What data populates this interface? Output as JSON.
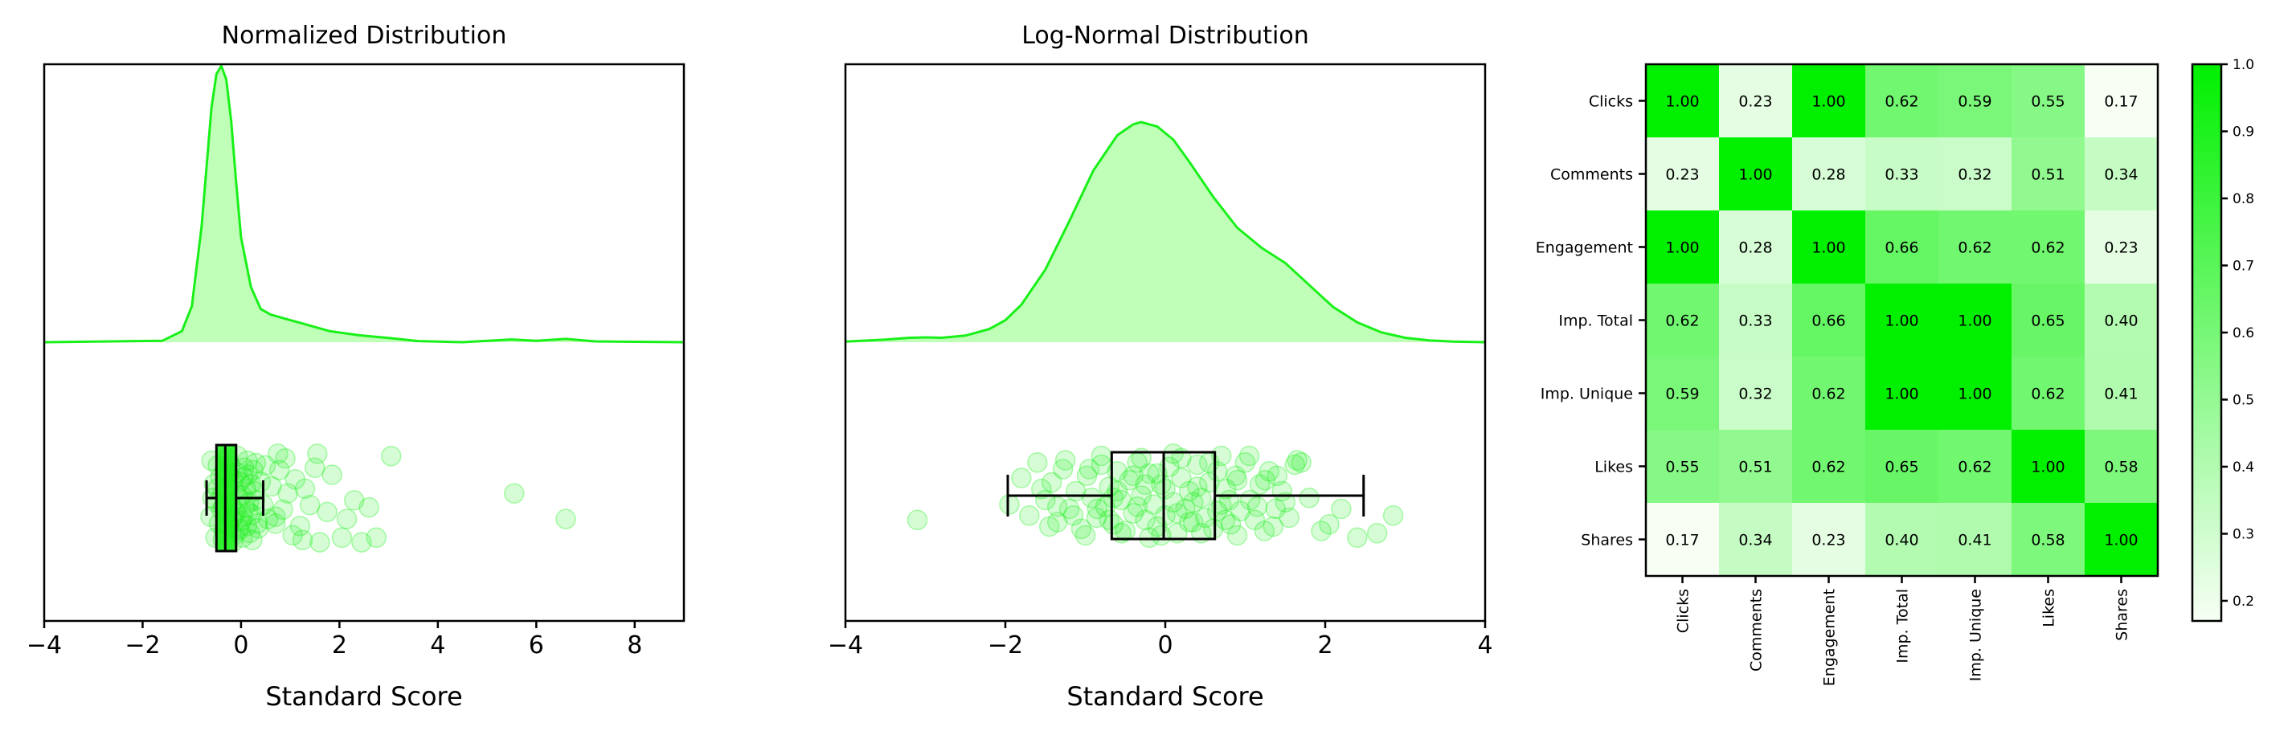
{
  "colors": {
    "accent": "#19f019",
    "accent_fill": "#c0ffb8",
    "point_fill": "#19f019",
    "box_stroke": "#000000",
    "heat_low": "#f7fff5",
    "heat_high": "#00f000"
  },
  "chart_data": [
    {
      "type": "raincloud",
      "title": "Normalized Distribution",
      "xlabel": "Standard Score",
      "ylabel": "",
      "xlim": [
        -4,
        9
      ],
      "xticks": [
        "−4",
        "−2",
        "0",
        "2",
        "4",
        "6",
        "8"
      ],
      "xtick_values": [
        -4,
        -2,
        0,
        2,
        4,
        6,
        8
      ],
      "density": {
        "x": [
          -4,
          -1.6,
          -1.2,
          -1.0,
          -0.8,
          -0.6,
          -0.5,
          -0.4,
          -0.3,
          -0.2,
          -0.1,
          0.0,
          0.2,
          0.4,
          0.6,
          0.9,
          1.3,
          1.8,
          2.4,
          3.0,
          3.6,
          4.5,
          5.5,
          6.0,
          6.6,
          7.2,
          9
        ],
        "y": [
          0.0,
          0.005,
          0.04,
          0.13,
          0.42,
          0.85,
          0.97,
          1.0,
          0.95,
          0.8,
          0.58,
          0.38,
          0.2,
          0.12,
          0.1,
          0.085,
          0.065,
          0.04,
          0.025,
          0.015,
          0.004,
          0.0,
          0.01,
          0.005,
          0.012,
          0.003,
          0.0
        ]
      },
      "boxplot": {
        "whisker_low": -0.7,
        "q1": -0.5,
        "median": -0.32,
        "q3": -0.1,
        "whisker_high": 0.45
      },
      "points": [
        [
          -0.62,
          0.4
        ],
        [
          -0.55,
          -0.3
        ],
        [
          -0.5,
          0.1
        ],
        [
          -0.45,
          0.55
        ],
        [
          -0.42,
          -0.45
        ],
        [
          -0.4,
          0.25
        ],
        [
          -0.38,
          -0.1
        ],
        [
          -0.35,
          0.7
        ],
        [
          -0.33,
          -0.6
        ],
        [
          -0.3,
          0.35
        ],
        [
          -0.28,
          0.05
        ],
        [
          -0.26,
          -0.25
        ],
        [
          -0.24,
          0.6
        ],
        [
          -0.22,
          -0.7
        ],
        [
          -0.2,
          0.15
        ],
        [
          -0.18,
          0.45
        ],
        [
          -0.16,
          -0.4
        ],
        [
          -0.14,
          0.8
        ],
        [
          -0.12,
          -0.15
        ],
        [
          -0.1,
          0.3
        ],
        [
          -0.08,
          -0.55
        ],
        [
          -0.06,
          0.65
        ],
        [
          -0.04,
          0.0
        ],
        [
          -0.02,
          -0.35
        ],
        [
          0.0,
          0.5
        ],
        [
          0.02,
          -0.05
        ],
        [
          0.04,
          0.4
        ],
        [
          0.06,
          -0.65
        ],
        [
          0.08,
          0.2
        ],
        [
          0.1,
          -0.2
        ],
        [
          0.12,
          0.6
        ],
        [
          0.14,
          -0.5
        ],
        [
          0.16,
          0.1
        ],
        [
          0.18,
          0.75
        ],
        [
          0.2,
          -0.3
        ],
        [
          0.22,
          0.35
        ],
        [
          0.25,
          -0.6
        ],
        [
          0.28,
          0.05
        ],
        [
          0.3,
          -0.75
        ],
        [
          0.33,
          0.55
        ],
        [
          -0.6,
          -0.8
        ],
        [
          -0.52,
          0.85
        ],
        [
          -0.47,
          -0.7
        ],
        [
          -0.37,
          0.9
        ],
        [
          -0.27,
          -0.85
        ],
        [
          -0.17,
          0.95
        ],
        [
          -0.07,
          -0.9
        ],
        [
          0.03,
          0.85
        ],
        [
          0.13,
          -0.8
        ],
        [
          0.23,
          0.9
        ],
        [
          -0.58,
          0.0
        ],
        [
          -0.48,
          -0.2
        ],
        [
          -0.36,
          0.2
        ],
        [
          -0.25,
          -0.5
        ],
        [
          -0.15,
          0.4
        ],
        [
          -0.05,
          0.7
        ],
        [
          0.05,
          -0.45
        ],
        [
          0.15,
          0.3
        ],
        [
          0.27,
          -0.15
        ],
        [
          0.35,
          0.65
        ],
        [
          0.4,
          -0.35
        ],
        [
          0.45,
          0.15
        ],
        [
          0.5,
          -0.7
        ],
        [
          0.55,
          0.45
        ],
        [
          0.62,
          -0.25
        ],
        [
          0.7,
          0.55
        ],
        [
          0.78,
          -0.6
        ],
        [
          0.85,
          0.25
        ],
        [
          0.95,
          -0.1
        ],
        [
          1.05,
          0.8
        ],
        [
          1.1,
          -0.4
        ],
        [
          1.2,
          0.6
        ],
        [
          1.3,
          -0.2
        ],
        [
          1.4,
          0.15
        ],
        [
          1.5,
          -0.65
        ],
        [
          1.6,
          0.95
        ],
        [
          1.75,
          0.3
        ],
        [
          1.85,
          -0.5
        ],
        [
          2.05,
          0.85
        ],
        [
          2.15,
          0.45
        ],
        [
          2.45,
          0.95
        ],
        [
          2.3,
          0.05
        ],
        [
          2.6,
          0.2
        ],
        [
          2.75,
          0.85
        ],
        [
          3.05,
          -0.9
        ],
        [
          1.55,
          -0.95
        ],
        [
          0.75,
          -0.95
        ],
        [
          1.25,
          0.9
        ],
        [
          0.9,
          -0.85
        ],
        [
          0.7,
          0.4
        ],
        [
          5.55,
          -0.1
        ],
        [
          6.6,
          0.45
        ]
      ]
    },
    {
      "type": "raincloud",
      "title": "Log-Normal Distribution",
      "xlabel": "Standard Score",
      "ylabel": "",
      "xlim": [
        -4,
        4
      ],
      "xticks": [
        "−4",
        "−2",
        "0",
        "2",
        "4"
      ],
      "xtick_values": [
        -4,
        -2,
        0,
        2,
        4
      ],
      "density": {
        "x": [
          -4,
          -3.5,
          -3.2,
          -3.0,
          -2.8,
          -2.5,
          -2.2,
          -2.0,
          -1.8,
          -1.5,
          -1.2,
          -0.9,
          -0.6,
          -0.4,
          -0.3,
          -0.1,
          0.1,
          0.3,
          0.6,
          0.9,
          1.2,
          1.5,
          1.8,
          2.1,
          2.4,
          2.7,
          3.0,
          3.3,
          3.6,
          4.0
        ],
        "y": [
          0.003,
          0.012,
          0.02,
          0.022,
          0.02,
          0.03,
          0.06,
          0.1,
          0.17,
          0.33,
          0.55,
          0.78,
          0.94,
          0.99,
          1.0,
          0.98,
          0.92,
          0.82,
          0.66,
          0.52,
          0.43,
          0.36,
          0.26,
          0.16,
          0.09,
          0.045,
          0.02,
          0.008,
          0.003,
          0.0
        ]
      },
      "boxplot": {
        "whisker_low": -1.97,
        "q1": -0.67,
        "median": -0.02,
        "q3": 0.62,
        "whisker_high": 2.48
      },
      "points": [
        [
          -3.1,
          0.55
        ],
        [
          -1.95,
          0.2
        ],
        [
          -1.8,
          -0.4
        ],
        [
          -1.7,
          0.45
        ],
        [
          -1.6,
          -0.75
        ],
        [
          -1.5,
          0.1
        ],
        [
          -1.42,
          -0.3
        ],
        [
          -1.35,
          0.6
        ],
        [
          -1.28,
          -0.6
        ],
        [
          -1.2,
          0.3
        ],
        [
          -1.12,
          -0.1
        ],
        [
          -1.05,
          0.75
        ],
        [
          -0.98,
          -0.45
        ],
        [
          -0.92,
          0.05
        ],
        [
          -0.86,
          0.5
        ],
        [
          -0.8,
          -0.7
        ],
        [
          -0.75,
          0.25
        ],
        [
          -0.7,
          -0.2
        ],
        [
          -0.65,
          0.65
        ],
        [
          -0.6,
          -0.55
        ],
        [
          -0.55,
          0.1
        ],
        [
          -0.5,
          0.8
        ],
        [
          -0.45,
          -0.35
        ],
        [
          -0.4,
          0.4
        ],
        [
          -0.35,
          -0.75
        ],
        [
          -0.3,
          0.0
        ],
        [
          -0.25,
          0.55
        ],
        [
          -0.2,
          -0.5
        ],
        [
          -0.15,
          0.2
        ],
        [
          -0.1,
          0.7
        ],
        [
          -0.05,
          -0.25
        ],
        [
          0.0,
          0.45
        ],
        [
          0.05,
          -0.65
        ],
        [
          0.1,
          0.15
        ],
        [
          0.15,
          0.85
        ],
        [
          0.2,
          -0.4
        ],
        [
          0.25,
          0.3
        ],
        [
          0.3,
          -0.1
        ],
        [
          0.35,
          0.6
        ],
        [
          0.4,
          -0.7
        ],
        [
          0.45,
          0.05
        ],
        [
          0.5,
          0.5
        ],
        [
          0.55,
          -0.3
        ],
        [
          0.6,
          0.75
        ],
        [
          0.65,
          -0.55
        ],
        [
          0.7,
          0.2
        ],
        [
          0.76,
          -0.15
        ],
        [
          0.82,
          0.65
        ],
        [
          0.88,
          -0.45
        ],
        [
          0.94,
          0.35
        ],
        [
          1.0,
          -0.75
        ],
        [
          1.06,
          0.1
        ],
        [
          1.12,
          0.55
        ],
        [
          1.18,
          -0.25
        ],
        [
          1.24,
          0.8
        ],
        [
          1.3,
          -0.55
        ],
        [
          1.38,
          0.3
        ],
        [
          1.46,
          -0.1
        ],
        [
          1.55,
          0.5
        ],
        [
          1.62,
          -0.7
        ],
        [
          1.65,
          -0.8
        ],
        [
          1.7,
          -0.75
        ],
        [
          1.5,
          0.15
        ],
        [
          1.25,
          -0.35
        ],
        [
          0.9,
          0.9
        ],
        [
          0.7,
          -0.9
        ],
        [
          0.45,
          0.85
        ],
        [
          0.2,
          -0.85
        ],
        [
          -0.05,
          0.9
        ],
        [
          -0.3,
          -0.85
        ],
        [
          -0.55,
          0.85
        ],
        [
          -0.8,
          -0.9
        ],
        [
          -1.0,
          0.9
        ],
        [
          -1.25,
          -0.8
        ],
        [
          -1.45,
          0.7
        ],
        [
          -0.85,
          0.3
        ],
        [
          -0.6,
          -0.1
        ],
        [
          -0.35,
          0.25
        ],
        [
          -0.1,
          -0.5
        ],
        [
          0.15,
          0.4
        ],
        [
          0.4,
          -0.2
        ],
        [
          0.65,
          0.35
        ],
        [
          0.9,
          -0.35
        ],
        [
          1.15,
          0.25
        ],
        [
          1.4,
          -0.45
        ],
        [
          1.95,
          0.8
        ],
        [
          2.05,
          0.65
        ],
        [
          2.2,
          0.3
        ],
        [
          2.4,
          0.95
        ],
        [
          2.65,
          0.85
        ],
        [
          2.85,
          0.45
        ],
        [
          1.8,
          0.05
        ],
        [
          -0.95,
          -0.6
        ],
        [
          -1.15,
          0.45
        ],
        [
          -0.4,
          -0.45
        ],
        [
          0.3,
          0.6
        ],
        [
          0.8,
          0.1
        ],
        [
          1.35,
          0.7
        ],
        [
          -0.7,
          0.55
        ],
        [
          0.55,
          -0.75
        ],
        [
          -1.55,
          -0.15
        ],
        [
          -0.2,
          0.95
        ],
        [
          0.1,
          -0.95
        ],
        [
          1.05,
          -0.9
        ],
        [
          -0.65,
          0.05
        ],
        [
          0.0,
          -0.15
        ],
        [
          0.35,
          0.15
        ],
        [
          0.75,
          0.55
        ],
        [
          -0.25,
          -0.25
        ],
        [
          -1.35,
          0.25
        ]
      ]
    },
    {
      "type": "heatmap",
      "title": "",
      "xlabel": "",
      "ylabel": "",
      "labels": [
        "Clicks",
        "Comments",
        "Engagement",
        "Imp. Total",
        "Imp. Unique",
        "Likes",
        "Shares"
      ],
      "matrix": [
        [
          1.0,
          0.23,
          1.0,
          0.62,
          0.59,
          0.55,
          0.17
        ],
        [
          0.23,
          1.0,
          0.28,
          0.33,
          0.32,
          0.51,
          0.34
        ],
        [
          1.0,
          0.28,
          1.0,
          0.66,
          0.62,
          0.62,
          0.23
        ],
        [
          0.62,
          0.33,
          0.66,
          1.0,
          1.0,
          0.65,
          0.4
        ],
        [
          0.59,
          0.32,
          0.62,
          1.0,
          1.0,
          0.62,
          0.41
        ],
        [
          0.55,
          0.51,
          0.62,
          0.65,
          0.62,
          1.0,
          0.58
        ],
        [
          0.17,
          0.34,
          0.23,
          0.4,
          0.41,
          0.58,
          1.0
        ]
      ],
      "cell_labels": [
        [
          "1.00",
          "0.23",
          "1.00",
          "0.62",
          "0.59",
          "0.55",
          "0.17"
        ],
        [
          "0.23",
          "1.00",
          "0.28",
          "0.33",
          "0.32",
          "0.51",
          "0.34"
        ],
        [
          "1.00",
          "0.28",
          "1.00",
          "0.66",
          "0.62",
          "0.62",
          "0.23"
        ],
        [
          "0.62",
          "0.33",
          "0.66",
          "1.00",
          "1.00",
          "0.65",
          "0.40"
        ],
        [
          "0.59",
          "0.32",
          "0.62",
          "1.00",
          "1.00",
          "0.62",
          "0.41"
        ],
        [
          "0.55",
          "0.51",
          "0.62",
          "0.65",
          "0.62",
          "1.00",
          "0.58"
        ],
        [
          "0.17",
          "0.34",
          "0.23",
          "0.40",
          "0.41",
          "0.58",
          "1.00"
        ]
      ],
      "colorbar": {
        "min": 0.17,
        "max": 1.0,
        "ticks": [
          "0.2",
          "0.3",
          "0.4",
          "0.5",
          "0.6",
          "0.7",
          "0.8",
          "0.9",
          "1.0"
        ],
        "tick_values": [
          0.2,
          0.3,
          0.4,
          0.5,
          0.6,
          0.7,
          0.8,
          0.9,
          1.0
        ]
      }
    }
  ]
}
